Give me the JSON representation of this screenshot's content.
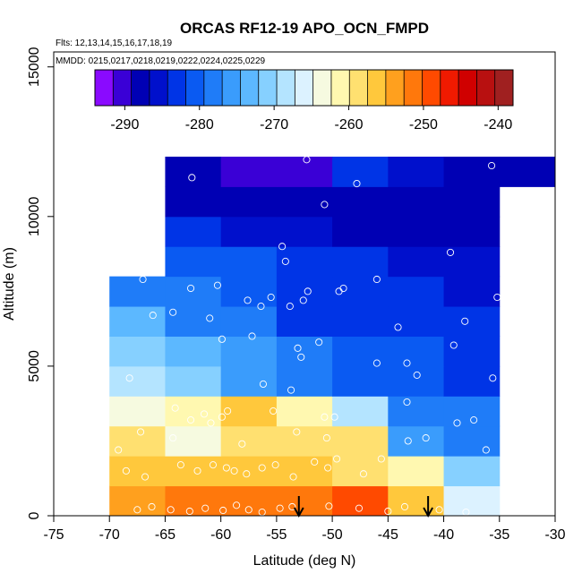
{
  "chart_data": {
    "type": "heatmap",
    "title": "ORCAS RF12-19 APO_OCN_FMPD",
    "annotations": {
      "flights": "Flts: 12,13,14,15,16,17,18,19",
      "dates": "MMDD: 0215,0217,0218,0219,0222,0224,0225,0229"
    },
    "xlabel": "Latitude (deg N)",
    "ylabel": "Altitude (m)",
    "xlim": [
      -75,
      -30
    ],
    "ylim": [
      0,
      15500
    ],
    "x_ticks": [
      -75,
      -70,
      -65,
      -60,
      -55,
      -50,
      -45,
      -40,
      -35,
      -30
    ],
    "x_tick_labels": [
      "-75",
      "-70",
      "-65",
      "-60",
      "-55",
      "-50",
      "-45",
      "-40",
      "-35",
      "-30"
    ],
    "y_ticks": [
      0,
      5000,
      10000,
      15000
    ],
    "y_tick_labels": [
      "0",
      "5000",
      "10000",
      "15000"
    ],
    "colorbar": {
      "min": -294,
      "max": -238,
      "ticks": [
        -290,
        -280,
        -270,
        -260,
        -250,
        -240
      ],
      "tick_labels": [
        "-290",
        "-280",
        "-270",
        "-260",
        "-250",
        "-240"
      ],
      "colors": [
        "#8a0aff",
        "#3a00d6",
        "#0000b4",
        "#0010cc",
        "#0034e6",
        "#0a5af2",
        "#1f7cf8",
        "#3a9cfc",
        "#5cb8ff",
        "#86d0ff",
        "#b4e4ff",
        "#dcf2ff",
        "#f6fae0",
        "#fff8b0",
        "#ffe070",
        "#ffc83c",
        "#ffa01e",
        "#ff780c",
        "#ff4a00",
        "#f01a00",
        "#d00000",
        "#b81010",
        "#a02020"
      ],
      "position": "top"
    },
    "cells": [
      {
        "lat": -70,
        "alt": 0,
        "value": -253
      },
      {
        "lat": -65,
        "alt": 0,
        "value": -252
      },
      {
        "lat": -60,
        "alt": 0,
        "value": -252
      },
      {
        "lat": -55,
        "alt": 0,
        "value": -252
      },
      {
        "lat": -50,
        "alt": 0,
        "value": -248
      },
      {
        "lat": -45,
        "alt": 0,
        "value": -256
      },
      {
        "lat": -40,
        "alt": 0,
        "value": -266
      },
      {
        "lat": -70,
        "alt": 1000,
        "value": -257
      },
      {
        "lat": -65,
        "alt": 1000,
        "value": -257
      },
      {
        "lat": -60,
        "alt": 1000,
        "value": -256
      },
      {
        "lat": -55,
        "alt": 1000,
        "value": -256
      },
      {
        "lat": -50,
        "alt": 1000,
        "value": -258
      },
      {
        "lat": -45,
        "alt": 1000,
        "value": -262
      },
      {
        "lat": -40,
        "alt": 1000,
        "value": -272
      },
      {
        "lat": -70,
        "alt": 2000,
        "value": -259
      },
      {
        "lat": -65,
        "alt": 2000,
        "value": -263
      },
      {
        "lat": -60,
        "alt": 2000,
        "value": -258
      },
      {
        "lat": -55,
        "alt": 2000,
        "value": -258
      },
      {
        "lat": -50,
        "alt": 2000,
        "value": -259
      },
      {
        "lat": -45,
        "alt": 2000,
        "value": -276
      },
      {
        "lat": -40,
        "alt": 2000,
        "value": -277
      },
      {
        "lat": -70,
        "alt": 3000,
        "value": -264
      },
      {
        "lat": -65,
        "alt": 3000,
        "value": -261
      },
      {
        "lat": -60,
        "alt": 3000,
        "value": -256
      },
      {
        "lat": -55,
        "alt": 3000,
        "value": -262
      },
      {
        "lat": -50,
        "alt": 3000,
        "value": -269
      },
      {
        "lat": -45,
        "alt": 3000,
        "value": -278
      },
      {
        "lat": -40,
        "alt": 3000,
        "value": -278
      },
      {
        "lat": -70,
        "alt": 4000,
        "value": -268
      },
      {
        "lat": -65,
        "alt": 4000,
        "value": -270
      },
      {
        "lat": -60,
        "alt": 4000,
        "value": -276
      },
      {
        "lat": -55,
        "alt": 4000,
        "value": -277
      },
      {
        "lat": -50,
        "alt": 4000,
        "value": -280
      },
      {
        "lat": -45,
        "alt": 4000,
        "value": -280
      },
      {
        "lat": -40,
        "alt": 4000,
        "value": -282
      },
      {
        "lat": -70,
        "alt": 5000,
        "value": -271
      },
      {
        "lat": -65,
        "alt": 5000,
        "value": -273
      },
      {
        "lat": -60,
        "alt": 5000,
        "value": -276
      },
      {
        "lat": -55,
        "alt": 5000,
        "value": -278
      },
      {
        "lat": -50,
        "alt": 5000,
        "value": -280
      },
      {
        "lat": -45,
        "alt": 5000,
        "value": -281
      },
      {
        "lat": -40,
        "alt": 5000,
        "value": -282
      },
      {
        "lat": -70,
        "alt": 6000,
        "value": -273
      },
      {
        "lat": -65,
        "alt": 6000,
        "value": -279
      },
      {
        "lat": -60,
        "alt": 6000,
        "value": -277
      },
      {
        "lat": -55,
        "alt": 6000,
        "value": -282
      },
      {
        "lat": -50,
        "alt": 6000,
        "value": -284
      },
      {
        "lat": -45,
        "alt": 6000,
        "value": -282
      },
      {
        "lat": -40,
        "alt": 6000,
        "value": -284
      },
      {
        "lat": -70,
        "alt": 7000,
        "value": -278
      },
      {
        "lat": -65,
        "alt": 7000,
        "value": -279
      },
      {
        "lat": -60,
        "alt": 7000,
        "value": -280
      },
      {
        "lat": -55,
        "alt": 7000,
        "value": -283
      },
      {
        "lat": -50,
        "alt": 7000,
        "value": -283
      },
      {
        "lat": -45,
        "alt": 7000,
        "value": -284
      },
      {
        "lat": -40,
        "alt": 7000,
        "value": -286
      },
      {
        "lat": -65,
        "alt": 8000,
        "value": -281
      },
      {
        "lat": -60,
        "alt": 8000,
        "value": -281
      },
      {
        "lat": -55,
        "alt": 8000,
        "value": -282
      },
      {
        "lat": -50,
        "alt": 8000,
        "value": -284
      },
      {
        "lat": -45,
        "alt": 8000,
        "value": -285
      },
      {
        "lat": -40,
        "alt": 8000,
        "value": -286
      },
      {
        "lat": -65,
        "alt": 9000,
        "value": -284
      },
      {
        "lat": -60,
        "alt": 9000,
        "value": -285
      },
      {
        "lat": -55,
        "alt": 9000,
        "value": -285
      },
      {
        "lat": -50,
        "alt": 9000,
        "value": -287
      },
      {
        "lat": -45,
        "alt": 9000,
        "value": -287
      },
      {
        "lat": -40,
        "alt": 9000,
        "value": -287
      },
      {
        "lat": -65,
        "alt": 10000,
        "value": -288
      },
      {
        "lat": -60,
        "alt": 10000,
        "value": -288
      },
      {
        "lat": -55,
        "alt": 10000,
        "value": -289
      },
      {
        "lat": -50,
        "alt": 10000,
        "value": -288
      },
      {
        "lat": -45,
        "alt": 10000,
        "value": -288
      },
      {
        "lat": -40,
        "alt": 10000,
        "value": -288
      },
      {
        "lat": -65,
        "alt": 11000,
        "value": -289
      },
      {
        "lat": -60,
        "alt": 11000,
        "value": -290
      },
      {
        "lat": -55,
        "alt": 11000,
        "value": -291
      },
      {
        "lat": -50,
        "alt": 11000,
        "value": -284
      },
      {
        "lat": -45,
        "alt": 11000,
        "value": -286
      },
      {
        "lat": -40,
        "alt": 11000,
        "value": -287
      },
      {
        "lat": -35,
        "alt": 11000,
        "value": -288
      }
    ],
    "points": [
      [
        -67.5,
        200
      ],
      [
        -66.2,
        300
      ],
      [
        -64.5,
        200
      ],
      [
        -62.8,
        150
      ],
      [
        -61.4,
        250
      ],
      [
        -59.8,
        180
      ],
      [
        -58.6,
        350
      ],
      [
        -57.5,
        200
      ],
      [
        -56.3,
        120
      ],
      [
        -54.7,
        250
      ],
      [
        -53.6,
        300
      ],
      [
        -50.3,
        320
      ],
      [
        -47.6,
        250
      ],
      [
        -45.0,
        150
      ],
      [
        -43.5,
        300
      ],
      [
        -40.4,
        200
      ],
      [
        -38.0,
        120
      ],
      [
        -68.5,
        1500
      ],
      [
        -66.8,
        1300
      ],
      [
        -63.6,
        1700
      ],
      [
        -62.1,
        1500
      ],
      [
        -60.7,
        1700
      ],
      [
        -59.5,
        1600
      ],
      [
        -58.8,
        1500
      ],
      [
        -57.7,
        1400
      ],
      [
        -56.3,
        1600
      ],
      [
        -55.1,
        1700
      ],
      [
        -53.5,
        1300
      ],
      [
        -51.6,
        1800
      ],
      [
        -50.4,
        1600
      ],
      [
        -49.6,
        1900
      ],
      [
        -47.2,
        1400
      ],
      [
        -45.6,
        1900
      ],
      [
        -69.2,
        2200
      ],
      [
        -67.2,
        2800
      ],
      [
        -64.3,
        2600
      ],
      [
        -62.7,
        3200
      ],
      [
        -60.9,
        3100
      ],
      [
        -59.9,
        3300
      ],
      [
        -58.1,
        2400
      ],
      [
        -55.3,
        3500
      ],
      [
        -53.2,
        2800
      ],
      [
        -50.5,
        2600
      ],
      [
        -49.8,
        3300
      ],
      [
        -43.2,
        2500
      ],
      [
        -41.6,
        2600
      ],
      [
        -38.8,
        3100
      ],
      [
        -37.3,
        3200
      ],
      [
        -36.2,
        2200
      ],
      [
        -64.1,
        3600
      ],
      [
        -61.5,
        3400
      ],
      [
        -59.4,
        3500
      ],
      [
        -56.2,
        4400
      ],
      [
        -53.7,
        4200
      ],
      [
        -50.7,
        3300
      ],
      [
        -43.3,
        3800
      ],
      [
        -68.2,
        4600
      ],
      [
        -59.9,
        5900
      ],
      [
        -57.2,
        6000
      ],
      [
        -53.1,
        5600
      ],
      [
        -52.8,
        5300
      ],
      [
        -51.2,
        5800
      ],
      [
        -46.0,
        5100
      ],
      [
        -43.3,
        5100
      ],
      [
        -42.4,
        4700
      ],
      [
        -39.1,
        5700
      ],
      [
        -35.6,
        4600
      ],
      [
        -66.1,
        6700
      ],
      [
        -64.3,
        6800
      ],
      [
        -61.0,
        6600
      ],
      [
        -56.4,
        7000
      ],
      [
        -55.5,
        7300
      ],
      [
        -52.6,
        7200
      ],
      [
        -49.4,
        7500
      ],
      [
        -44.1,
        6300
      ],
      [
        -38.1,
        6500
      ],
      [
        -35.2,
        7300
      ],
      [
        -67.0,
        7900
      ],
      [
        -62.7,
        7600
      ],
      [
        -60.3,
        7700
      ],
      [
        -57.6,
        7200
      ],
      [
        -53.8,
        7000
      ],
      [
        -52.2,
        7500
      ],
      [
        -49.0,
        7600
      ],
      [
        -46.0,
        7900
      ],
      [
        -54.2,
        8500
      ],
      [
        -54.5,
        9000
      ],
      [
        -39.4,
        8800
      ],
      [
        -62.6,
        11300
      ],
      [
        -52.3,
        11900
      ],
      [
        -50.7,
        10400
      ],
      [
        -47.8,
        11100
      ],
      [
        -35.7,
        11700
      ]
    ],
    "arrows": [
      {
        "lat": -53.0,
        "alt": 0
      },
      {
        "lat": -41.4,
        "alt": 0
      }
    ]
  }
}
